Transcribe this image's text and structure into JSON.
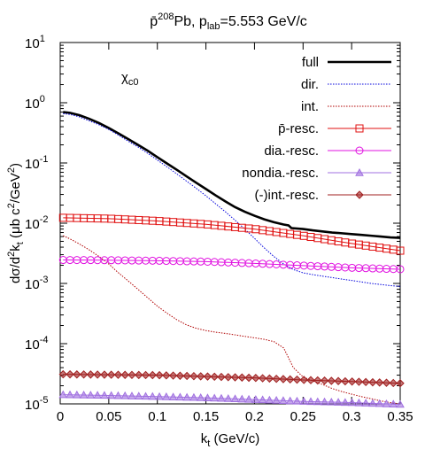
{
  "chart_data": {
    "type": "line",
    "title": {
      "pre": "p̄",
      "sup": "208",
      "mid": "Pb, p",
      "sub": "lab",
      "post": "=5.553 GeV/c"
    },
    "xlabel": {
      "main": "k",
      "sub": "t",
      "post": " (GeV/c)"
    },
    "ylabel": {
      "a": "dσ/d",
      "sup2a": "2",
      "b": "k",
      "sub_t": "t",
      "c": " (μb c",
      "sup2b": "2",
      "d": "/GeV",
      "sup2c": "2",
      "e": ")"
    },
    "annotation": {
      "main": "χ",
      "sub": "c0"
    },
    "xlim": [
      0,
      0.35
    ],
    "ylim": [
      1e-05,
      10
    ],
    "yscale": "log",
    "grid": false,
    "legend_position": "top-right",
    "x_ticks": [
      "0",
      "0.05",
      "0.1",
      "0.15",
      "0.2",
      "0.25",
      "0.3",
      "0.35"
    ],
    "y_ticks": [
      {
        "base": "10",
        "exp": "1"
      },
      {
        "base": "10",
        "exp": "0"
      },
      {
        "base": "10",
        "exp": "-1"
      },
      {
        "base": "10",
        "exp": "-2"
      },
      {
        "base": "10",
        "exp": "-3"
      },
      {
        "base": "10",
        "exp": "-4"
      },
      {
        "base": "10",
        "exp": "-5"
      }
    ],
    "series": [
      {
        "name": "full",
        "color": "#000000",
        "style": "solid-thick",
        "marker": "none",
        "points": [
          [
            0.003,
            0.7
          ],
          [
            0.01,
            0.68
          ],
          [
            0.02,
            0.62
          ],
          [
            0.03,
            0.54
          ],
          [
            0.04,
            0.46
          ],
          [
            0.05,
            0.38
          ],
          [
            0.06,
            0.31
          ],
          [
            0.07,
            0.25
          ],
          [
            0.08,
            0.2
          ],
          [
            0.09,
            0.16
          ],
          [
            0.1,
            0.125
          ],
          [
            0.11,
            0.098
          ],
          [
            0.12,
            0.077
          ],
          [
            0.13,
            0.06
          ],
          [
            0.14,
            0.047
          ],
          [
            0.15,
            0.037
          ],
          [
            0.16,
            0.029
          ],
          [
            0.17,
            0.023
          ],
          [
            0.18,
            0.0185
          ],
          [
            0.19,
            0.0155
          ],
          [
            0.2,
            0.0133
          ],
          [
            0.21,
            0.0116
          ],
          [
            0.22,
            0.0104
          ],
          [
            0.23,
            0.0095
          ],
          [
            0.235,
            0.0092
          ],
          [
            0.238,
            0.0083
          ],
          [
            0.25,
            0.008
          ],
          [
            0.26,
            0.0076
          ],
          [
            0.27,
            0.0073
          ],
          [
            0.28,
            0.007
          ],
          [
            0.29,
            0.0068
          ],
          [
            0.3,
            0.0066
          ],
          [
            0.31,
            0.0064
          ],
          [
            0.32,
            0.0062
          ],
          [
            0.33,
            0.006
          ],
          [
            0.34,
            0.0058
          ],
          [
            0.35,
            0.0057
          ]
        ]
      },
      {
        "name": "dir.",
        "color": "#0000dd",
        "style": "dotted",
        "marker": "none",
        "points": [
          [
            0.003,
            0.66
          ],
          [
            0.01,
            0.64
          ],
          [
            0.02,
            0.58
          ],
          [
            0.03,
            0.5
          ],
          [
            0.04,
            0.43
          ],
          [
            0.05,
            0.36
          ],
          [
            0.06,
            0.29
          ],
          [
            0.07,
            0.23
          ],
          [
            0.08,
            0.185
          ],
          [
            0.09,
            0.145
          ],
          [
            0.1,
            0.112
          ],
          [
            0.11,
            0.086
          ],
          [
            0.12,
            0.066
          ],
          [
            0.13,
            0.05
          ],
          [
            0.14,
            0.038
          ],
          [
            0.15,
            0.0285
          ],
          [
            0.16,
            0.021
          ],
          [
            0.17,
            0.0155
          ],
          [
            0.18,
            0.0112
          ],
          [
            0.19,
            0.008
          ],
          [
            0.2,
            0.0056
          ],
          [
            0.21,
            0.0039
          ],
          [
            0.22,
            0.0028
          ],
          [
            0.23,
            0.0021
          ],
          [
            0.24,
            0.0017
          ],
          [
            0.25,
            0.0015
          ],
          [
            0.26,
            0.0014
          ],
          [
            0.27,
            0.00132
          ],
          [
            0.28,
            0.00125
          ],
          [
            0.29,
            0.00118
          ],
          [
            0.3,
            0.00112
          ],
          [
            0.31,
            0.00106
          ],
          [
            0.32,
            0.001
          ],
          [
            0.33,
            0.00096
          ],
          [
            0.34,
            0.00092
          ],
          [
            0.35,
            0.00089
          ]
        ]
      },
      {
        "name": "int.",
        "color": "#b00000",
        "style": "dotted",
        "marker": "none",
        "points": [
          [
            0.003,
            0.0062
          ],
          [
            0.01,
            0.0055
          ],
          [
            0.02,
            0.0045
          ],
          [
            0.03,
            0.0036
          ],
          [
            0.04,
            0.0028
          ],
          [
            0.05,
            0.0021
          ],
          [
            0.06,
            0.0015
          ],
          [
            0.07,
            0.0011
          ],
          [
            0.08,
            0.0008
          ],
          [
            0.09,
            0.00058
          ],
          [
            0.1,
            0.00042
          ],
          [
            0.11,
            0.00032
          ],
          [
            0.12,
            0.00025
          ],
          [
            0.13,
            0.000205
          ],
          [
            0.14,
            0.00018
          ],
          [
            0.15,
            0.000165
          ],
          [
            0.16,
            0.000155
          ],
          [
            0.17,
            0.000148
          ],
          [
            0.18,
            0.00014
          ],
          [
            0.19,
            0.000132
          ],
          [
            0.2,
            0.000125
          ],
          [
            0.21,
            0.000118
          ],
          [
            0.22,
            0.000108
          ],
          [
            0.23,
            8.5e-05
          ],
          [
            0.24,
            4e-05
          ],
          [
            0.25,
            2.8e-05
          ],
          [
            0.26,
            2.4e-05
          ],
          [
            0.27,
            2.1e-05
          ],
          [
            0.28,
            1.8e-05
          ],
          [
            0.29,
            1.6e-05
          ],
          [
            0.3,
            1.45e-05
          ],
          [
            0.31,
            1.32e-05
          ],
          [
            0.32,
            1.22e-05
          ],
          [
            0.33,
            1.12e-05
          ],
          [
            0.34,
            1.05e-05
          ],
          [
            0.35,
            1e-05
          ]
        ]
      },
      {
        "name": "p̄-resc.",
        "color": "#e01010",
        "style": "solid-thin",
        "marker": "square",
        "points": [
          [
            0.003,
            0.0123
          ],
          [
            0.05,
            0.0119
          ],
          [
            0.1,
            0.0109
          ],
          [
            0.15,
            0.0096
          ],
          [
            0.2,
            0.008
          ],
          [
            0.25,
            0.0062
          ],
          [
            0.3,
            0.0046
          ],
          [
            0.35,
            0.0035
          ]
        ]
      },
      {
        "name": "dia.-resc.",
        "color": "#e010e0",
        "style": "solid-thin",
        "marker": "circle",
        "points": [
          [
            0.003,
            0.00245
          ],
          [
            0.05,
            0.00243
          ],
          [
            0.1,
            0.00238
          ],
          [
            0.15,
            0.0023
          ],
          [
            0.2,
            0.00215
          ],
          [
            0.25,
            0.00198
          ],
          [
            0.3,
            0.00182
          ],
          [
            0.35,
            0.00172
          ]
        ]
      },
      {
        "name": "nondia.-resc.",
        "color": "#a070e0",
        "style": "solid-thin",
        "marker": "triangle",
        "points": [
          [
            0.003,
            1.42e-05
          ],
          [
            0.05,
            1.38e-05
          ],
          [
            0.1,
            1.32e-05
          ],
          [
            0.15,
            1.26e-05
          ],
          [
            0.2,
            1.18e-05
          ],
          [
            0.25,
            1.1e-05
          ],
          [
            0.3,
            1.05e-05
          ],
          [
            0.35,
            9.8e-06
          ]
        ]
      },
      {
        "name": "(-)int.-resc.",
        "color": "#a02020",
        "style": "solid-thin",
        "marker": "diamond",
        "points": [
          [
            0.003,
            3.1e-05
          ],
          [
            0.05,
            3.05e-05
          ],
          [
            0.1,
            3e-05
          ],
          [
            0.15,
            2.85e-05
          ],
          [
            0.2,
            2.7e-05
          ],
          [
            0.25,
            2.5e-05
          ],
          [
            0.3,
            2.35e-05
          ],
          [
            0.35,
            2.2e-05
          ]
        ]
      }
    ]
  }
}
